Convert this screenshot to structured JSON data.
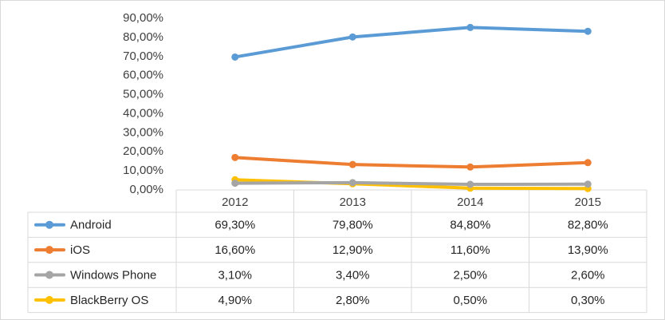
{
  "chart_data": {
    "type": "line",
    "title": "",
    "xlabel": "",
    "ylabel": "",
    "categories": [
      "2012",
      "2013",
      "2014",
      "2015"
    ],
    "ylim": [
      0,
      90
    ],
    "yticks": [
      0,
      10,
      20,
      30,
      40,
      50,
      60,
      70,
      80,
      90
    ],
    "ytick_labels": [
      "0,00%",
      "10,00%",
      "20,00%",
      "30,00%",
      "40,00%",
      "50,00%",
      "60,00%",
      "70,00%",
      "80,00%",
      "90,00%"
    ],
    "grid": false,
    "legend": "data table below chart",
    "series": [
      {
        "name": "Android",
        "color": "#5b9bd5",
        "values": [
          69.3,
          79.8,
          84.8,
          82.8
        ],
        "labels": [
          "69,30%",
          "79,80%",
          "84,80%",
          "82,80%"
        ]
      },
      {
        "name": "iOS",
        "color": "#ed7d31",
        "values": [
          16.6,
          12.9,
          11.6,
          13.9
        ],
        "labels": [
          "16,60%",
          "12,90%",
          "11,60%",
          "13,90%"
        ]
      },
      {
        "name": "Windows Phone",
        "color": "#a5a5a5",
        "values": [
          3.1,
          3.4,
          2.5,
          2.6
        ],
        "labels": [
          "3,10%",
          "3,40%",
          "2,50%",
          "2,60%"
        ]
      },
      {
        "name": "BlackBerry OS",
        "color": "#ffc000",
        "values": [
          4.9,
          2.8,
          0.5,
          0.3
        ],
        "labels": [
          "4,90%",
          "2,80%",
          "0,50%",
          "0,30%"
        ]
      }
    ]
  }
}
